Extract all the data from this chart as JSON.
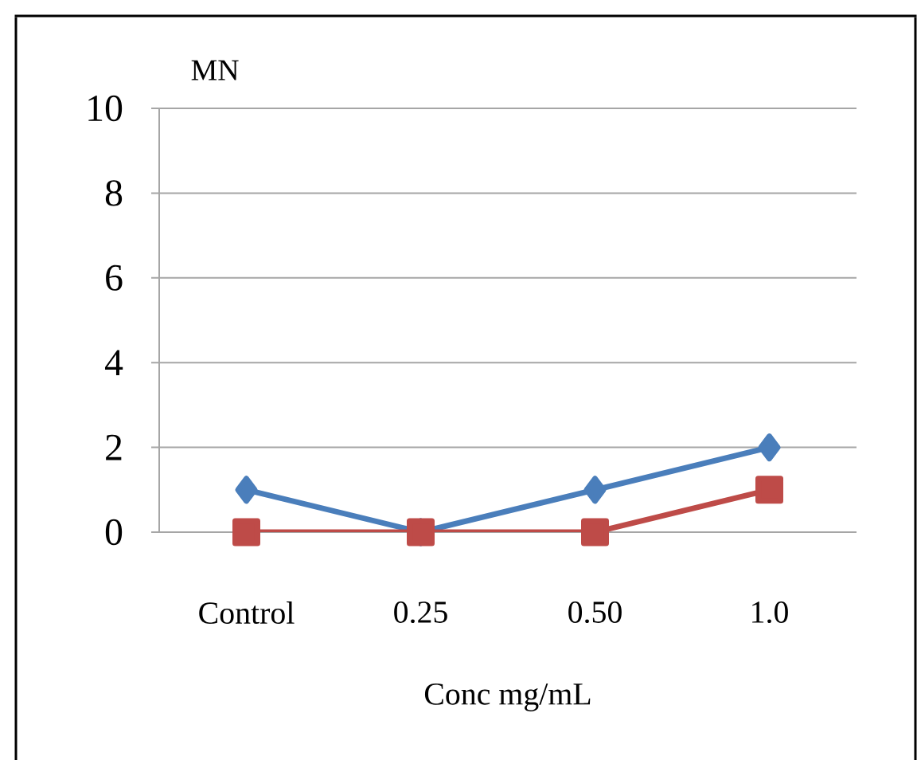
{
  "chart_data": {
    "type": "line",
    "ylabel": "MN",
    "xlabel": "Conc mg/mL",
    "categories": [
      "Control",
      "0.25",
      "0.50",
      "1.0"
    ],
    "series": [
      {
        "color": "#4a7ebb",
        "marker": "diamond",
        "values": [
          1,
          0,
          1,
          2
        ]
      },
      {
        "color": "#be4b48",
        "marker": "square",
        "values": [
          0,
          0,
          0,
          1
        ]
      }
    ],
    "ylim": [
      0,
      10
    ],
    "yticks": [
      0,
      2,
      4,
      6,
      8,
      10
    ],
    "grid": "y",
    "legend": false
  }
}
